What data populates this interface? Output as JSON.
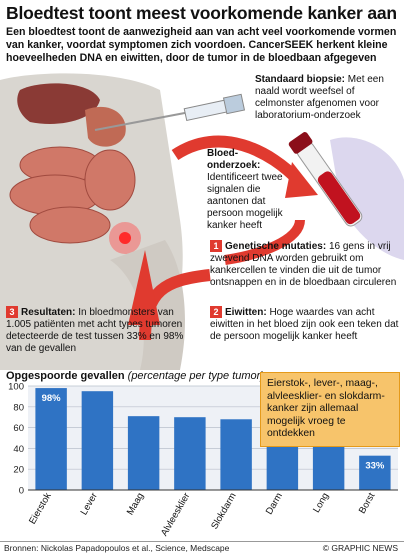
{
  "header": {
    "title": "Bloedtest toont meest voorkomende kanker aan",
    "intro": "Een bloedtest toont de aanwezigheid aan van acht veel voorkomende vormen van kanker, voordat symptomen zich voordoen. CancerSEEK herkent kleine hoeveelheden DNA en eiwitten, door de tumor in de bloedbaan afgegeven"
  },
  "steps": {
    "biopsy_title": "Standaard biopsie:",
    "biopsy_text": "Met een naald wordt weefsel of celmonster afgenomen voor laboratorium-onderzoek",
    "blood_title": "Bloed-onderzoek:",
    "blood_text": "Identificeert twee signalen die aantonen dat persoon mogelijk kanker heeft",
    "step1_num": "1",
    "step1_title": "Genetische mutaties:",
    "step1_text": "16 gens in vrij zwevend DNA worden gebruikt om kankercellen te vinden die uit de tumor ontsnappen en in de bloedbaan circuleren",
    "step2_num": "2",
    "step2_title": "Eiwitten:",
    "step2_text": "Hoge waardes van acht eiwitten in het bloed zijn ook een teken dat de persoon mogelijk kanker heeft",
    "step3_num": "3",
    "step3_title": "Resultaten:",
    "step3_text": "In bloedmonsters van 1.005 patiënten met acht types tumoren detecteerde de test tussen 33% en 98% van de gevallen"
  },
  "callout": "Eierstok-, lever-, maag-, alvleesklier- en slokdarm-kanker zijn allemaal mogelijk vroeg te ontdekken",
  "footer": {
    "sources": "Bronnen: Nickolas Papadopoulos et al., Science, Medscape",
    "credit": "© GRAPHIC NEWS"
  },
  "colors": {
    "red": "#e03a2f",
    "bar": "#2f73c4",
    "callout_bg": "#f7c46b"
  },
  "chart_data": {
    "type": "bar",
    "title": "Opgespoorde gevallen",
    "subtitle": "(percentage per type tumor)",
    "categories": [
      "Eierstok",
      "Lever",
      "Maag",
      "Alvleesklier",
      "Slokdarm",
      "Darm",
      "Long",
      "Borst"
    ],
    "values": [
      98,
      95,
      71,
      70,
      68,
      64,
      58,
      33
    ],
    "value_labels": {
      "0": "98%",
      "7": "33%"
    },
    "ylim": [
      0,
      100
    ],
    "yticks": [
      0,
      20,
      40,
      60,
      80,
      100
    ],
    "grid": true
  }
}
